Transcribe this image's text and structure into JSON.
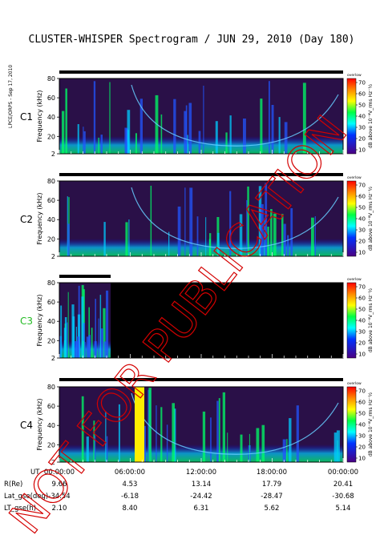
{
  "title": "CLUSTER-WHISPER Spectrogram / JUN 29, 2010 (Day 180)",
  "side_label": "LPCE/ORPS - Sep 17, 2010",
  "watermark": "NOT FOR PUBLICATION",
  "colors": {
    "background_dark": "#1a0a2e",
    "panel_bg": "#2a1048",
    "watermark": "#d40000",
    "c3_label": "#22bb22"
  },
  "colorbar": {
    "title": "overlow",
    "ticks": [
      "70",
      "60",
      "50",
      "40",
      "30",
      "20",
      "10"
    ],
    "label": "dB above 10⁻⁸V_rms Hz⁻½",
    "colors": [
      "#ff0000",
      "#ff8800",
      "#ffff00",
      "#00ff00",
      "#00ffff",
      "#0000ff",
      "#4b0082"
    ]
  },
  "chart_data": [
    {
      "type": "heatmap",
      "spacecraft": "C1",
      "ylabel": "Frequency (kHz)",
      "yticks": [
        "80",
        "60",
        "40",
        "20",
        "2"
      ],
      "ylim": [
        2,
        80
      ],
      "xticks": [
        "00:00:00",
        "06:00:00",
        "12:00:00",
        "18:00:00",
        "00:00:00"
      ],
      "data_coverage": "full day"
    },
    {
      "type": "heatmap",
      "spacecraft": "C2",
      "ylabel": "Frequency (kHz)",
      "yticks": [
        "80",
        "60",
        "40",
        "20",
        "2"
      ],
      "ylim": [
        2,
        80
      ],
      "data_coverage": "full day"
    },
    {
      "type": "heatmap",
      "spacecraft": "C3",
      "ylabel": "Frequency (kHz)",
      "yticks": [
        "80",
        "60",
        "40",
        "20",
        "2"
      ],
      "ylim": [
        2,
        80
      ],
      "data_coverage": "00:00 to ~05:00 only"
    },
    {
      "type": "heatmap",
      "spacecraft": "C4",
      "ylabel": "Frequency (kHz)",
      "yticks": [
        "80",
        "60",
        "40",
        "20",
        "2"
      ],
      "ylim": [
        2,
        80
      ],
      "data_coverage": "full day"
    }
  ],
  "ephemeris": {
    "rows": [
      {
        "label": "UT",
        "values": [
          "00:00:00",
          "06:00:00",
          "12:00:00",
          "18:00:00",
          "00:00:00"
        ]
      },
      {
        "label": "R(Re)",
        "values": [
          "9.66",
          "4.53",
          "13.14",
          "17.79",
          "20.41"
        ]
      },
      {
        "label": "Lat_gse(deg)",
        "values": [
          "-34.54",
          "-6.18",
          "-24.42",
          "-28.47",
          "-30.68"
        ]
      },
      {
        "label": "LT_gse(h)",
        "values": [
          "2.10",
          "8.40",
          "6.31",
          "5.62",
          "5.14"
        ]
      }
    ]
  }
}
